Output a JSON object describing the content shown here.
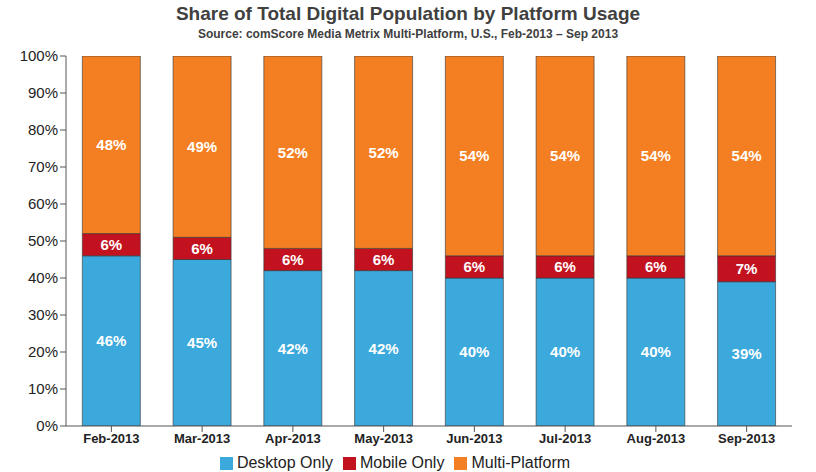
{
  "chart_data": {
    "type": "bar",
    "title": "Share of Total Digital Population by Platform Usage",
    "subtitle": "Source: comScore Media Metrix Multi-Platform, U.S., Feb-2013 – Sep 2013",
    "categories": [
      "Feb-2013",
      "Mar-2013",
      "Apr-2013",
      "May-2013",
      "Jun-2013",
      "Jul-2013",
      "Aug-2013",
      "Sep-2013"
    ],
    "series": [
      {
        "name": "Desktop Only",
        "color": "#3ba9dc",
        "values": [
          46,
          45,
          42,
          42,
          40,
          40,
          40,
          39
        ],
        "value_labels": [
          "46%",
          "45%",
          "42%",
          "42%",
          "40%",
          "40%",
          "40%",
          "39%"
        ]
      },
      {
        "name": "Mobile Only",
        "color": "#c2121f",
        "values": [
          6,
          6,
          6,
          6,
          6,
          6,
          6,
          7
        ],
        "value_labels": [
          "6%",
          "6%",
          "6%",
          "6%",
          "6%",
          "6%",
          "6%",
          "7%"
        ]
      },
      {
        "name": "Multi-Platform",
        "color": "#f47f22",
        "values": [
          48,
          49,
          52,
          52,
          54,
          54,
          54,
          54
        ],
        "value_labels": [
          "48%",
          "49%",
          "52%",
          "52%",
          "54%",
          "54%",
          "54%",
          "54%"
        ]
      }
    ],
    "ylim": [
      0,
      100
    ],
    "yticks": [
      {
        "value": 0,
        "label": "0%"
      },
      {
        "value": 10,
        "label": "10%"
      },
      {
        "value": 20,
        "label": "20%"
      },
      {
        "value": 30,
        "label": "30%"
      },
      {
        "value": 40,
        "label": "40%"
      },
      {
        "value": 50,
        "label": "50%"
      },
      {
        "value": 60,
        "label": "60%"
      },
      {
        "value": 70,
        "label": "70%"
      },
      {
        "value": 80,
        "label": "80%"
      },
      {
        "value": 90,
        "label": "90%"
      },
      {
        "value": 100,
        "label": "100%"
      }
    ],
    "stacked": true,
    "data_labels": true,
    "legend": "bottom",
    "grid": false
  }
}
